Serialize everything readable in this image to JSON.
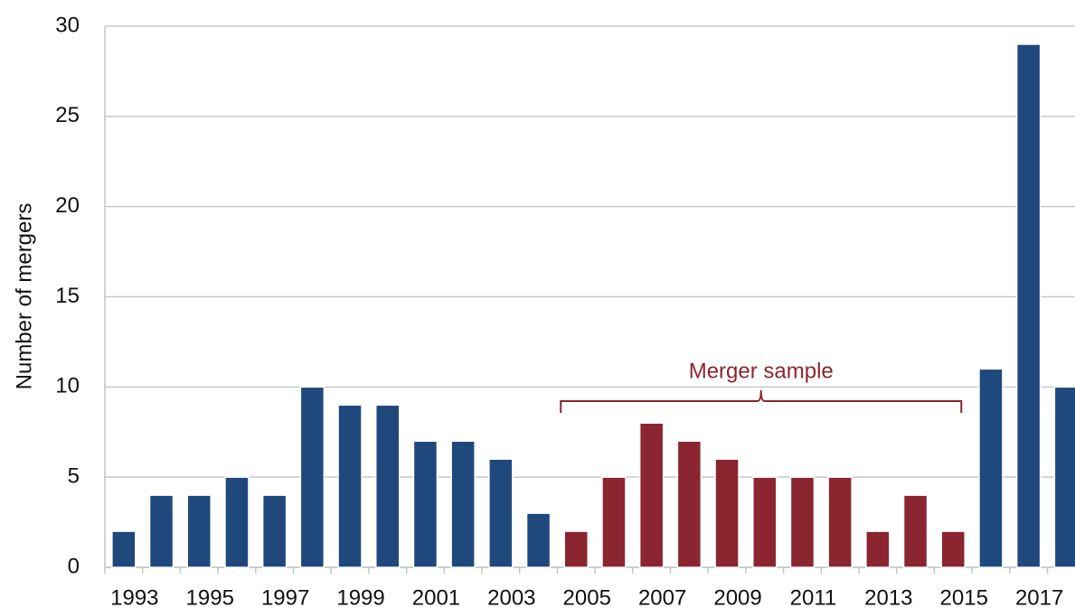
{
  "chart_data": {
    "type": "bar",
    "ylabel": "Number of mergers",
    "categories": [
      "1993",
      null,
      "1995",
      null,
      "1997",
      null,
      "1999",
      null,
      "2001",
      null,
      "2003",
      null,
      "2005",
      null,
      "2007",
      null,
      "2009",
      null,
      "2011",
      null,
      "2013",
      null,
      "2015",
      null,
      "2017",
      null
    ],
    "values": [
      2,
      4,
      4,
      5,
      4,
      10,
      9,
      9,
      7,
      7,
      6,
      3,
      2,
      5,
      8,
      7,
      6,
      5,
      5,
      5,
      2,
      4,
      2,
      11,
      29,
      10
    ],
    "colors": [
      "#1f497d",
      "#1f497d",
      "#1f497d",
      "#1f497d",
      "#1f497d",
      "#1f497d",
      "#1f497d",
      "#1f497d",
      "#1f497d",
      "#1f497d",
      "#1f497d",
      "#1f497d",
      "#8b2530",
      "#8b2530",
      "#8b2530",
      "#8b2530",
      "#8b2530",
      "#8b2530",
      "#8b2530",
      "#8b2530",
      "#8b2530",
      "#8b2530",
      "#8b2530",
      "#1f497d",
      "#1f497d",
      "#1f497d"
    ],
    "ylim": [
      0,
      30
    ],
    "yticks": [
      0,
      5,
      10,
      15,
      20,
      25,
      30
    ],
    "grid": true,
    "annotation": "Merger sample"
  }
}
